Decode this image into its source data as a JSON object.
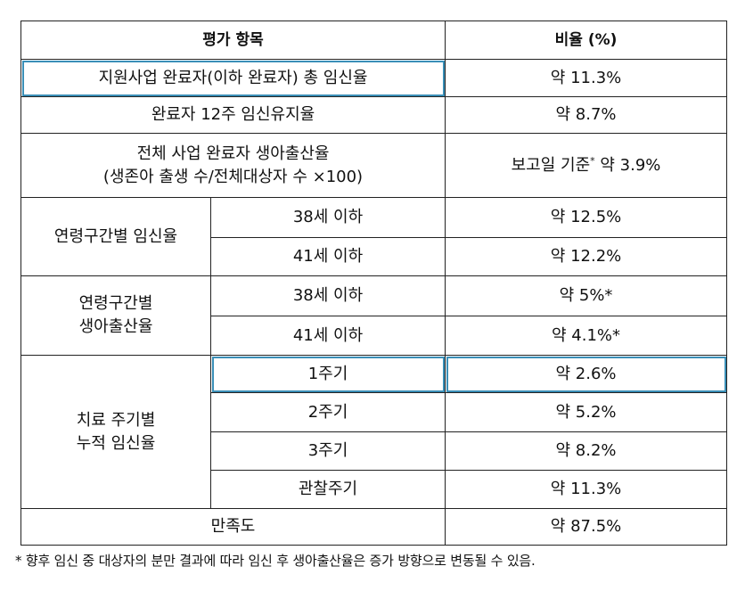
{
  "table": {
    "header": {
      "item": "평가 항목",
      "ratio": "비율 (%)"
    },
    "rows": {
      "total_pregnancy": {
        "label": "지원사업 완료자(이하 완료자) 총 임신율",
        "value": "약 11.3%"
      },
      "week12_maintenance": {
        "label": "완료자 12주 임신유지율",
        "value": "약 8.7%"
      },
      "total_birth": {
        "label_line1": "전체 사업 완료자 생아출산율",
        "label_line2": "(생존아 출생 수/전체대상자 수 ×100)",
        "value_prefix": "보고일 기준",
        "value_star": "*",
        "value_suffix": " 약 3.9%"
      },
      "age_pregnancy": {
        "group": "연령구간별 임신율",
        "items": [
          {
            "age": "38세 이하",
            "value": "약 12.5%"
          },
          {
            "age": "41세 이하",
            "value": "약 12.2%"
          }
        ]
      },
      "age_birth": {
        "group_line1": "연령구간별",
        "group_line2": "생아출산율",
        "items": [
          {
            "age": "38세 이하",
            "value": "약 5%*"
          },
          {
            "age": "41세 이하",
            "value": "약 4.1%*"
          }
        ]
      },
      "cycle_cumulative": {
        "group_line1": "치료 주기별",
        "group_line2": "누적 임신율",
        "items": [
          {
            "cycle": "1주기",
            "value": "약 2.6%"
          },
          {
            "cycle": "2주기",
            "value": "약 5.2%"
          },
          {
            "cycle": "3주기",
            "value": "약 8.2%"
          },
          {
            "cycle": "관찰주기",
            "value": "약 11.3%"
          }
        ]
      },
      "satisfaction": {
        "label": "만족도",
        "value": "약 87.5%"
      }
    }
  },
  "footnote": "* 향후 임신 중 대상자의 분만 결과에 따라 임신 후 생아출산율은 증가 방향으로 변동될 수 있음."
}
